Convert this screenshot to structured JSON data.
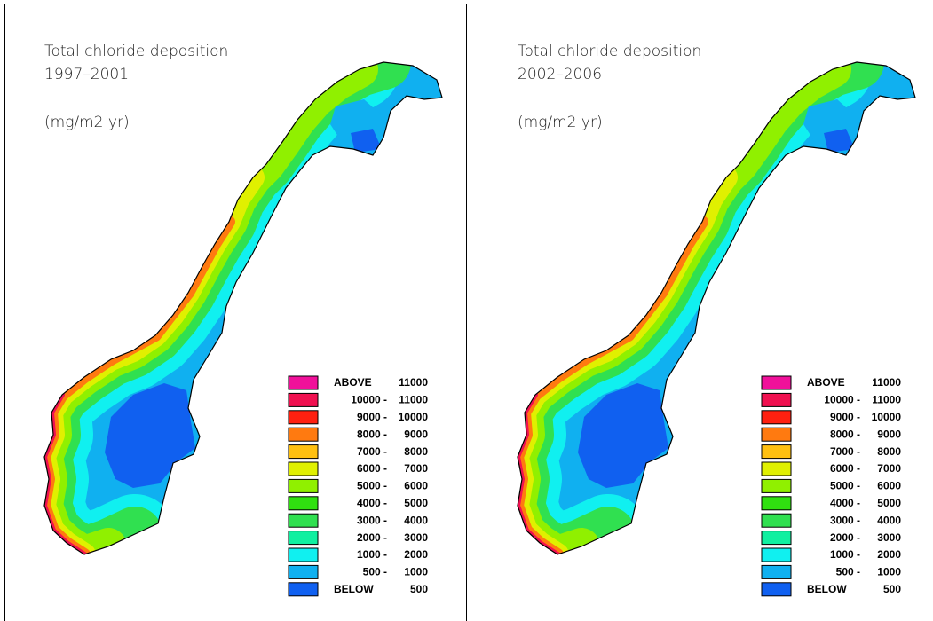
{
  "panels": [
    {
      "title": "Total chloride deposition",
      "period": "1997–2001",
      "unit": "(mg/m2 yr)",
      "legend": [
        {
          "from": "ABOVE",
          "to": "11000",
          "color": "#f0109a"
        },
        {
          "from": "10000 -",
          "to": "11000",
          "color": "#f01050"
        },
        {
          "from": "9000 -",
          "to": "10000",
          "color": "#ff2010"
        },
        {
          "from": "8000 -",
          "to": "9000",
          "color": "#ff7a10"
        },
        {
          "from": "7000 -",
          "to": "8000",
          "color": "#ffc010"
        },
        {
          "from": "6000 -",
          "to": "7000",
          "color": "#e0f000"
        },
        {
          "from": "5000 -",
          "to": "6000",
          "color": "#90f000"
        },
        {
          "from": "4000 -",
          "to": "5000",
          "color": "#30e010"
        },
        {
          "from": "3000 -",
          "to": "4000",
          "color": "#30e050"
        },
        {
          "from": "2000 -",
          "to": "3000",
          "color": "#10f0a0"
        },
        {
          "from": "1000 -",
          "to": "2000",
          "color": "#10f0f0"
        },
        {
          "from": "500 -",
          "to": "1000",
          "color": "#10b0f0"
        },
        {
          "from": "BELOW",
          "to": "500",
          "color": "#1060f0"
        }
      ]
    },
    {
      "title": "Total chloride deposition",
      "period": "2002–2006",
      "unit": "(mg/m2 yr)",
      "legend": [
        {
          "from": "ABOVE",
          "to": "11000",
          "color": "#f0109a"
        },
        {
          "from": "10000 -",
          "to": "11000",
          "color": "#f01050"
        },
        {
          "from": "9000 -",
          "to": "10000",
          "color": "#ff2010"
        },
        {
          "from": "8000 -",
          "to": "9000",
          "color": "#ff7a10"
        },
        {
          "from": "7000 -",
          "to": "8000",
          "color": "#ffc010"
        },
        {
          "from": "6000 -",
          "to": "7000",
          "color": "#e0f000"
        },
        {
          "from": "5000 -",
          "to": "6000",
          "color": "#90f000"
        },
        {
          "from": "4000 -",
          "to": "5000",
          "color": "#30e010"
        },
        {
          "from": "3000 -",
          "to": "4000",
          "color": "#30e050"
        },
        {
          "from": "2000 -",
          "to": "3000",
          "color": "#10f0a0"
        },
        {
          "from": "1000 -",
          "to": "2000",
          "color": "#10f0f0"
        },
        {
          "from": "500 -",
          "to": "1000",
          "color": "#10b0f0"
        },
        {
          "from": "BELOW",
          "to": "500",
          "color": "#1060f0"
        }
      ]
    }
  ]
}
